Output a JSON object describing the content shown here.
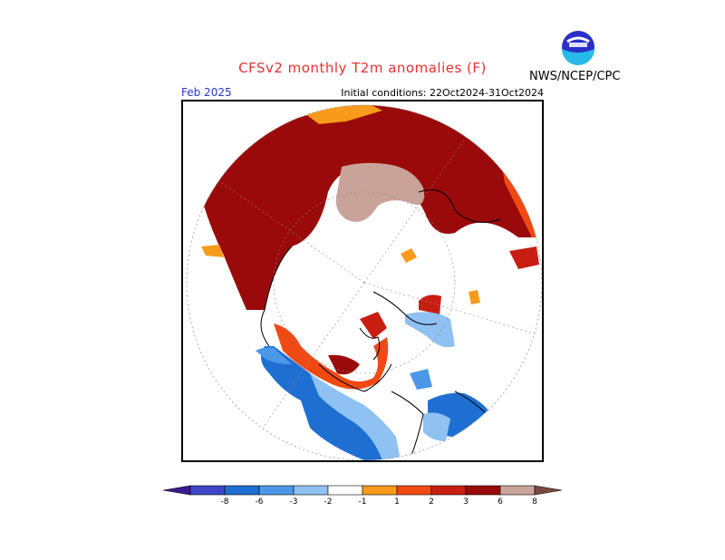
{
  "header": {
    "title": "CFSv2 monthly T2m anomalies (F)",
    "org": "NWS/NCEP/CPC",
    "logo": "noaa-logo",
    "month": "Feb 2025",
    "initial_conditions": "Initial conditions: 22Oct2024-31Oct2024"
  },
  "colorbar": {
    "labels": [
      "-8",
      "-6",
      "-3",
      "-2",
      "-1",
      "1",
      "2",
      "3",
      "6",
      "8"
    ],
    "colors": [
      "#3a1a8c",
      "#3d46c6",
      "#1f6fd2",
      "#4c98e8",
      "#8fc1f2",
      "#ffffff",
      "#f89a1c",
      "#f04a14",
      "#c81e12",
      "#9a0a0a",
      "#c9a39a",
      "#7a4a40"
    ]
  }
}
